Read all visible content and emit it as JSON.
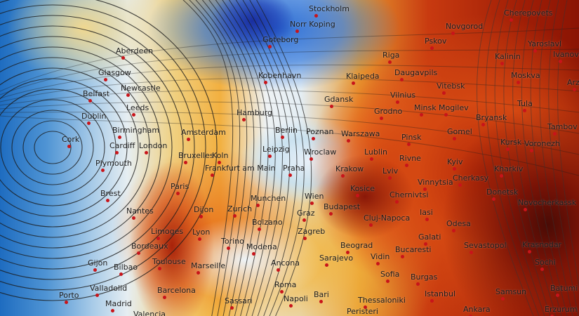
{
  "map": {
    "colors": {
      "cold": "#1e6cc0",
      "neutral": "#e6eef2",
      "warm": "#f2b040",
      "hot": "#c83a10",
      "extreme": "#4a0b05",
      "isobar": "#1a1a1a",
      "city_dot": "#c8141a"
    },
    "cities": [
      "Stockholm",
      "Norr Koping",
      "Goteborg",
      "Novgorod",
      "Cherepovets",
      "Pskov",
      "Riga",
      "Yaroslavl",
      "Ivanovo",
      "Kalinin",
      "Aberdeen",
      "Glasgow",
      "Kobenhavn",
      "Klaipeda",
      "Daugavpils",
      "Moskva",
      "Arz",
      "Belfast",
      "Newcastle",
      "Vitebsk",
      "Gdansk",
      "Vilnius",
      "Leeds",
      "Tula",
      "Hamburg",
      "Dublin",
      "Grodno",
      "Minsk",
      "Mogilev",
      "Bryansk",
      "Birmingham",
      "Amsterdam",
      "Berlin",
      "Poznan",
      "Warszawa",
      "Pinsk",
      "Gomel",
      "Tambov",
      "Cork",
      "Cardiff",
      "London",
      "Leipzig",
      "Wroclaw",
      "Lublin",
      "Kursk",
      "Voronezh",
      "Bruxelles",
      "Koln",
      "Rivne",
      "Kyiv",
      "Kharkiv",
      "Plymouth",
      "Frankfurt am Main",
      "Praha",
      "Krakow",
      "Lviv",
      "Vinnytsia",
      "Cherkasy",
      "Paris",
      "Kosice",
      "Wien",
      "Chernivtsi",
      "Donetsk",
      "Novocherkassk",
      "Brest",
      "Munchen",
      "Budapest",
      "Dijon",
      "Zurich",
      "Graz",
      "Nantes",
      "Cluj-Napoca",
      "Iasi",
      "Odesa",
      "Bolzano",
      "Limoges",
      "Lyon",
      "Zagreb",
      "Galati",
      "Torino",
      "Modena",
      "Beograd",
      "Sevastopol",
      "Krasnodar",
      "Bordeaux",
      "Bucaresti",
      "Toulouse",
      "Marseille",
      "Ancona",
      "Sarajevo",
      "Vidin",
      "Sochi",
      "Gijon",
      "Bilbao",
      "Sofia",
      "Roma",
      "Valladolid",
      "Barcelona",
      "Burgas",
      "Porto",
      "Bari",
      "Istanbul",
      "Samsun",
      "Batumi",
      "Madrid",
      "Sassari",
      "Napoli",
      "Thessaloniki",
      "Ankara",
      "Erzurum",
      "Valencia",
      "Peristeri"
    ]
  }
}
